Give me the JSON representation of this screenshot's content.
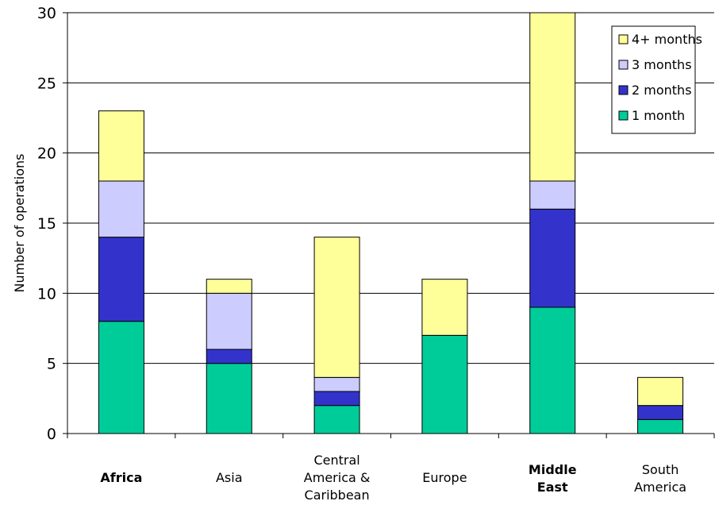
{
  "chart_data": {
    "type": "bar",
    "stacked": true,
    "categories": [
      "Africa",
      "Asia",
      "Central America & Caribbean",
      "Europe",
      "Middle East",
      "South America"
    ],
    "category_lines": [
      [
        "Africa"
      ],
      [
        "Asia"
      ],
      [
        "Central",
        "America &",
        "Caribbean"
      ],
      [
        "Europe"
      ],
      [
        "Middle",
        "East"
      ],
      [
        "South",
        "America"
      ]
    ],
    "bold_categories": [
      "Africa",
      "Middle East"
    ],
    "series": [
      {
        "name": "1 month",
        "color": "#00cc99",
        "values": [
          8,
          5,
          2,
          7,
          9,
          1
        ]
      },
      {
        "name": "2 months",
        "color": "#3333cc",
        "values": [
          6,
          1,
          1,
          0,
          7,
          1
        ]
      },
      {
        "name": "3 months",
        "color": "#ccccff",
        "values": [
          4,
          4,
          1,
          0,
          2,
          0
        ]
      },
      {
        "name": "4+ months",
        "color": "#ffff99",
        "values": [
          5,
          1,
          10,
          4,
          12,
          2
        ]
      }
    ],
    "ylabel": "Number of operations",
    "xlabel": "",
    "title": "",
    "ylim": [
      0,
      30
    ],
    "yticks": [
      0,
      5,
      10,
      15,
      20,
      25,
      30
    ],
    "grid": true,
    "legend_position": "top-right",
    "legend_order": [
      "4+ months",
      "3 months",
      "2 months",
      "1 month"
    ]
  }
}
